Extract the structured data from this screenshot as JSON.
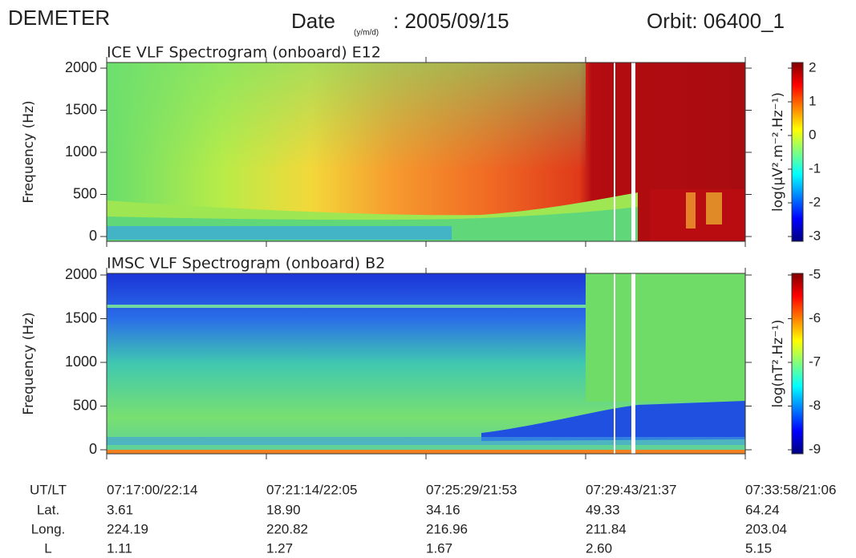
{
  "header": {
    "mission": "DEMETER",
    "date_label": "Date",
    "date_format": "(y/m/d)",
    "date_value": ": 2005/09/15",
    "orbit": "Orbit: 06400_1"
  },
  "chart_data": [
    {
      "type": "spectrogram",
      "title": "ICE VLF Spectrogram (onboard) E12",
      "y_label": "Frequency (Hz)",
      "ylim": [
        0,
        2000
      ],
      "yticks": [
        0,
        500,
        1000,
        1500,
        2000
      ],
      "colorbar_label": "log(μV².m⁻².Hz⁻¹)",
      "clim": [
        -3,
        2
      ],
      "cticks": [
        -3,
        -2,
        -1,
        0,
        1,
        2
      ]
    },
    {
      "type": "spectrogram",
      "title": "IMSC VLF Spectrogram (onboard) B2",
      "y_label": "Frequency (Hz)",
      "ylim": [
        0,
        2000
      ],
      "yticks": [
        0,
        500,
        1000,
        1500,
        2000
      ],
      "colorbar_label": "log(nT².Hz⁻¹)",
      "clim": [
        -9,
        -5
      ],
      "cticks": [
        -9,
        -8,
        -7,
        -6,
        -5
      ]
    }
  ],
  "x_axis": {
    "row_labels": [
      "UT/LT",
      "Lat.",
      "Long.",
      "L"
    ],
    "columns": [
      [
        "07:17:00/22:14",
        "3.61",
        "224.19",
        "1.11"
      ],
      [
        "07:21:14/22:05",
        "18.90",
        "220.82",
        "1.27"
      ],
      [
        "07:25:29/21:53",
        "34.16",
        "216.96",
        "1.67"
      ],
      [
        "07:29:43/21:37",
        "49.33",
        "211.84",
        "2.60"
      ],
      [
        "07:33:58/21:06",
        "64.24",
        "203.04",
        "5.15"
      ]
    ]
  }
}
